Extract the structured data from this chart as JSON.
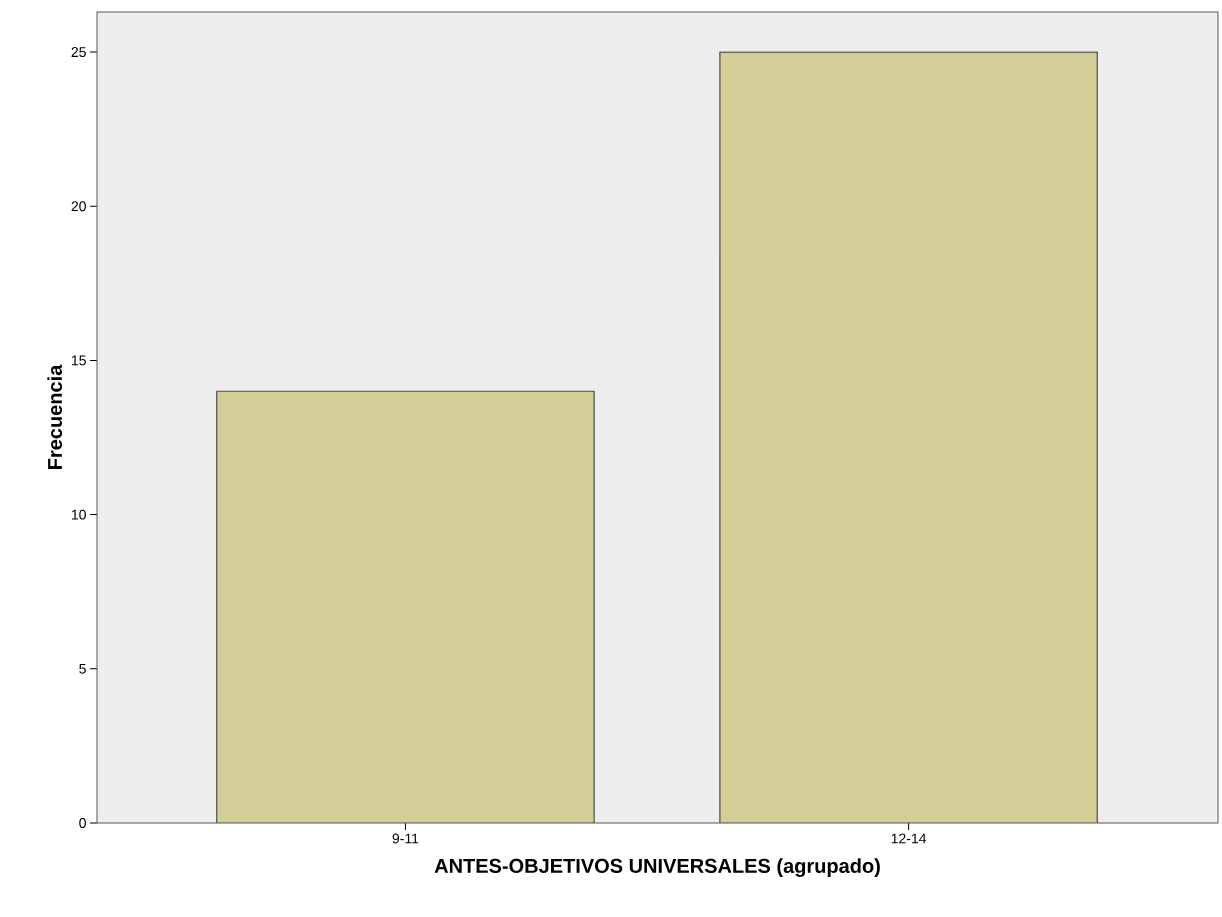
{
  "chart_data": {
    "type": "bar",
    "xlabel": "ANTES-OBJETIVOS UNIVERSALES (agrupado)",
    "ylabel": "Frecuencia",
    "categories": [
      "9-11",
      "12-14"
    ],
    "values": [
      14,
      25
    ],
    "color": "#d3ce98",
    "ylim": [
      0,
      26.3
    ],
    "yticks": [
      0,
      5,
      10,
      15,
      20,
      25
    ]
  }
}
